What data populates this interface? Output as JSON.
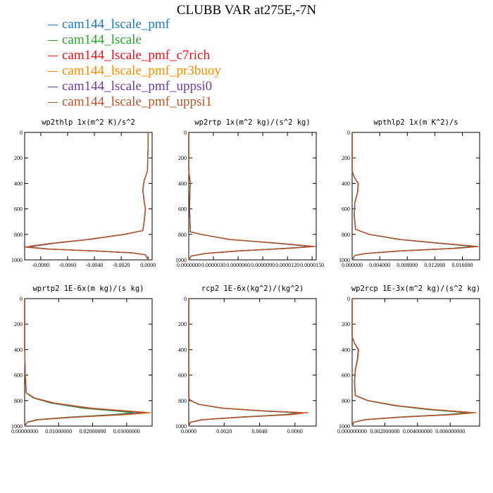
{
  "title": "CLUBB VAR at275E,-7N",
  "legend": [
    {
      "label": "cam144_lscale_pmf",
      "color": "#1f77b4"
    },
    {
      "label": "cam144_lscale",
      "color": "#2ca02c"
    },
    {
      "label": "cam144_lscale_pmf_c7rich",
      "color": "#e8101a"
    },
    {
      "label": "cam144_lscale_pmf_pr3buoy",
      "color": "#ff8c00"
    },
    {
      "label": "cam144_lscale_pmf_uppsi0",
      "color": "#6a3d9a"
    },
    {
      "label": "cam144_lscale_pmf_uppsi1",
      "color": "#b5562a"
    }
  ],
  "chart_data": [
    {
      "type": "line",
      "title": "wp2thlp  1x(m^2 K)/s^2",
      "xlim": [
        -0.0092,
        0.0003
      ],
      "ylim": [
        1000,
        0
      ],
      "xticks": [
        -0.008,
        -0.006,
        -0.004,
        -0.002,
        0.0
      ],
      "xtick_labels": [
        "-0.0080",
        "-0.0060",
        "-0.0040",
        "-0.0020",
        "0.0000"
      ],
      "yticks": [
        0,
        200,
        400,
        600,
        800,
        1000
      ],
      "profile": [
        [
          0,
          0
        ],
        [
          100,
          0
        ],
        [
          300,
          -5e-05
        ],
        [
          380,
          -0.0003
        ],
        [
          450,
          -0.0004
        ],
        [
          540,
          -0.0003
        ],
        [
          600,
          -0.0002
        ],
        [
          700,
          -0.0003
        ],
        [
          770,
          -0.0004
        ],
        [
          800,
          -0.0018
        ],
        [
          840,
          -0.0045
        ],
        [
          870,
          -0.0072
        ],
        [
          890,
          -0.0086
        ],
        [
          900,
          -0.0091
        ],
        [
          915,
          -0.0075
        ],
        [
          930,
          -0.004
        ],
        [
          945,
          -0.0012
        ],
        [
          960,
          -0.0002
        ],
        [
          1000,
          0
        ]
      ],
      "series": [
        {
          "name": "cam144_lscale_pmf",
          "scale": 1.0
        },
        {
          "name": "cam144_lscale",
          "scale": 0.97
        },
        {
          "name": "cam144_lscale_pmf_c7rich",
          "scale": 1.01
        },
        {
          "name": "cam144_lscale_pmf_pr3buoy",
          "scale": 0.99
        },
        {
          "name": "cam144_lscale_pmf_uppsi0",
          "scale": 0.98
        },
        {
          "name": "cam144_lscale_pmf_uppsi1",
          "scale": 1.0
        }
      ]
    },
    {
      "type": "line",
      "title": "wp2rtp  1x(m^2 kg)/(s^2 kg)",
      "xlim": [
        0.0,
        1.55e-05
      ],
      "ylim": [
        1000,
        0
      ],
      "xticks": [
        0,
        3e-06,
        6e-06,
        9e-06,
        1.2e-05,
        1.5e-05
      ],
      "xtick_labels": [
        "0.0000000",
        "0.0000030",
        "0.0000060",
        "0.0000090",
        "0.0000120",
        "0.0000150"
      ],
      "yticks": [
        0,
        200,
        400,
        600,
        800,
        1000
      ],
      "profile": [
        [
          0,
          0
        ],
        [
          300,
          0
        ],
        [
          400,
          2e-07
        ],
        [
          450,
          1.5e-07
        ],
        [
          600,
          1e-07
        ],
        [
          780,
          2e-07
        ],
        [
          800,
          1.5e-06
        ],
        [
          840,
          5e-06
        ],
        [
          870,
          1.1e-05
        ],
        [
          895,
          1.53e-05
        ],
        [
          910,
          1.2e-05
        ],
        [
          930,
          6e-06
        ],
        [
          950,
          2e-06
        ],
        [
          970,
          3e-07
        ],
        [
          1000,
          0
        ]
      ],
      "series": [
        {
          "name": "cam144_lscale_pmf",
          "scale": 1.0
        },
        {
          "name": "cam144_lscale",
          "scale": 0.97
        },
        {
          "name": "cam144_lscale_pmf_c7rich",
          "scale": 1.01
        },
        {
          "name": "cam144_lscale_pmf_pr3buoy",
          "scale": 0.99
        },
        {
          "name": "cam144_lscale_pmf_uppsi0",
          "scale": 0.98
        },
        {
          "name": "cam144_lscale_pmf_uppsi1",
          "scale": 1.0
        }
      ]
    },
    {
      "type": "line",
      "title": "wpthlp2  1x(m K^2)/s",
      "xlim": [
        0.0,
        0.0185
      ],
      "ylim": [
        1000,
        0
      ],
      "xticks": [
        0,
        0.004,
        0.008,
        0.012,
        0.016
      ],
      "xtick_labels": [
        "0.000000",
        "0.004000",
        "0.008000",
        "0.012000",
        "0.016000"
      ],
      "yticks": [
        0,
        200,
        400,
        600,
        800,
        1000
      ],
      "profile": [
        [
          0,
          0
        ],
        [
          300,
          0
        ],
        [
          350,
          0.0003
        ],
        [
          400,
          0.0009
        ],
        [
          470,
          0.0008
        ],
        [
          550,
          0.0004
        ],
        [
          650,
          0.0003
        ],
        [
          760,
          0.0005
        ],
        [
          800,
          0.0025
        ],
        [
          840,
          0.007
        ],
        [
          870,
          0.013
        ],
        [
          895,
          0.0183
        ],
        [
          910,
          0.015
        ],
        [
          930,
          0.007
        ],
        [
          950,
          0.002
        ],
        [
          965,
          0.0004
        ],
        [
          1000,
          0
        ]
      ],
      "series": [
        {
          "name": "cam144_lscale_pmf",
          "scale": 1.0
        },
        {
          "name": "cam144_lscale",
          "scale": 0.96
        },
        {
          "name": "cam144_lscale_pmf_c7rich",
          "scale": 1.0
        },
        {
          "name": "cam144_lscale_pmf_pr3buoy",
          "scale": 0.99
        },
        {
          "name": "cam144_lscale_pmf_uppsi0",
          "scale": 0.98
        },
        {
          "name": "cam144_lscale_pmf_uppsi1",
          "scale": 1.0
        }
      ]
    },
    {
      "type": "line",
      "title": "wprtp2  1E-6x(m kg)/(s kg)",
      "xlim": [
        0.0,
        0.0375
      ],
      "ylim": [
        1000,
        0
      ],
      "xticks": [
        0,
        0.01,
        0.02,
        0.03
      ],
      "xtick_labels": [
        "0.00000000",
        "0.01000000",
        "0.02000000",
        "0.03000000"
      ],
      "yticks": [
        0,
        200,
        400,
        600,
        800,
        1000
      ],
      "profile": [
        [
          0,
          0
        ],
        [
          400,
          0
        ],
        [
          600,
          0.0002
        ],
        [
          740,
          0.0005
        ],
        [
          780,
          0.003
        ],
        [
          820,
          0.009
        ],
        [
          860,
          0.02
        ],
        [
          880,
          0.03
        ],
        [
          895,
          0.0372
        ],
        [
          910,
          0.03
        ],
        [
          930,
          0.015
        ],
        [
          950,
          0.004
        ],
        [
          970,
          0.0008
        ],
        [
          1000,
          0
        ]
      ],
      "series": [
        {
          "name": "cam144_lscale_pmf",
          "scale": 0.98
        },
        {
          "name": "cam144_lscale",
          "scale": 0.86
        },
        {
          "name": "cam144_lscale_pmf_c7rich",
          "scale": 1.0
        },
        {
          "name": "cam144_lscale_pmf_pr3buoy",
          "scale": 0.99
        },
        {
          "name": "cam144_lscale_pmf_uppsi0",
          "scale": 0.93
        },
        {
          "name": "cam144_lscale_pmf_uppsi1",
          "scale": 0.97
        }
      ]
    },
    {
      "type": "line",
      "title": "rcp2  1E-6x(kg^2)/(kg^2)",
      "xlim": [
        0.0,
        0.0072
      ],
      "ylim": [
        1000,
        0
      ],
      "xticks": [
        0,
        0.002,
        0.004,
        0.006
      ],
      "xtick_labels": [
        "0.0000",
        "0.0020",
        "0.0040",
        "0.0060"
      ],
      "yticks": [
        0,
        200,
        400,
        600,
        800,
        1000
      ],
      "profile": [
        [
          0,
          0
        ],
        [
          780,
          0
        ],
        [
          800,
          0.0001
        ],
        [
          830,
          0.0006
        ],
        [
          860,
          0.002
        ],
        [
          880,
          0.0042
        ],
        [
          895,
          0.0066
        ],
        [
          910,
          0.0058
        ],
        [
          930,
          0.003
        ],
        [
          950,
          0.0008
        ],
        [
          970,
          0.0001
        ],
        [
          1000,
          0
        ]
      ],
      "series": [
        {
          "name": "cam144_lscale_pmf",
          "scale": 0.97
        },
        {
          "name": "cam144_lscale",
          "scale": 0.93
        },
        {
          "name": "cam144_lscale_pmf_c7rich",
          "scale": 1.02
        },
        {
          "name": "cam144_lscale_pmf_pr3buoy",
          "scale": 0.99
        },
        {
          "name": "cam144_lscale_pmf_uppsi0",
          "scale": 0.96
        },
        {
          "name": "cam144_lscale_pmf_uppsi1",
          "scale": 0.98
        }
      ]
    },
    {
      "type": "line",
      "title": "wp2rcp  1E-3x(m^2 kg)/(s^2 kg)",
      "xlim": [
        0.0,
        0.0078
      ],
      "ylim": [
        1000,
        0
      ],
      "xticks": [
        0,
        0.002,
        0.004,
        0.006
      ],
      "xtick_labels": [
        "0.000000000",
        "0.002000000",
        "0.004000000",
        "0.006000000"
      ],
      "yticks": [
        0,
        200,
        400,
        600,
        800,
        1000
      ],
      "profile": [
        [
          0,
          0
        ],
        [
          300,
          0
        ],
        [
          350,
          0.00015
        ],
        [
          400,
          0.0004
        ],
        [
          470,
          0.00035
        ],
        [
          560,
          0.0002
        ],
        [
          650,
          0.00015
        ],
        [
          760,
          0.0002
        ],
        [
          800,
          0.001
        ],
        [
          840,
          0.0028
        ],
        [
          870,
          0.005
        ],
        [
          895,
          0.0076
        ],
        [
          910,
          0.0062
        ],
        [
          930,
          0.003
        ],
        [
          950,
          0.0008
        ],
        [
          970,
          0.0001
        ],
        [
          1000,
          0
        ]
      ],
      "series": [
        {
          "name": "cam144_lscale_pmf",
          "scale": 0.98
        },
        {
          "name": "cam144_lscale",
          "scale": 0.92
        },
        {
          "name": "cam144_lscale_pmf_c7rich",
          "scale": 1.0
        },
        {
          "name": "cam144_lscale_pmf_pr3buoy",
          "scale": 0.99
        },
        {
          "name": "cam144_lscale_pmf_uppsi0",
          "scale": 0.96
        },
        {
          "name": "cam144_lscale_pmf_uppsi1",
          "scale": 0.98
        }
      ]
    }
  ]
}
